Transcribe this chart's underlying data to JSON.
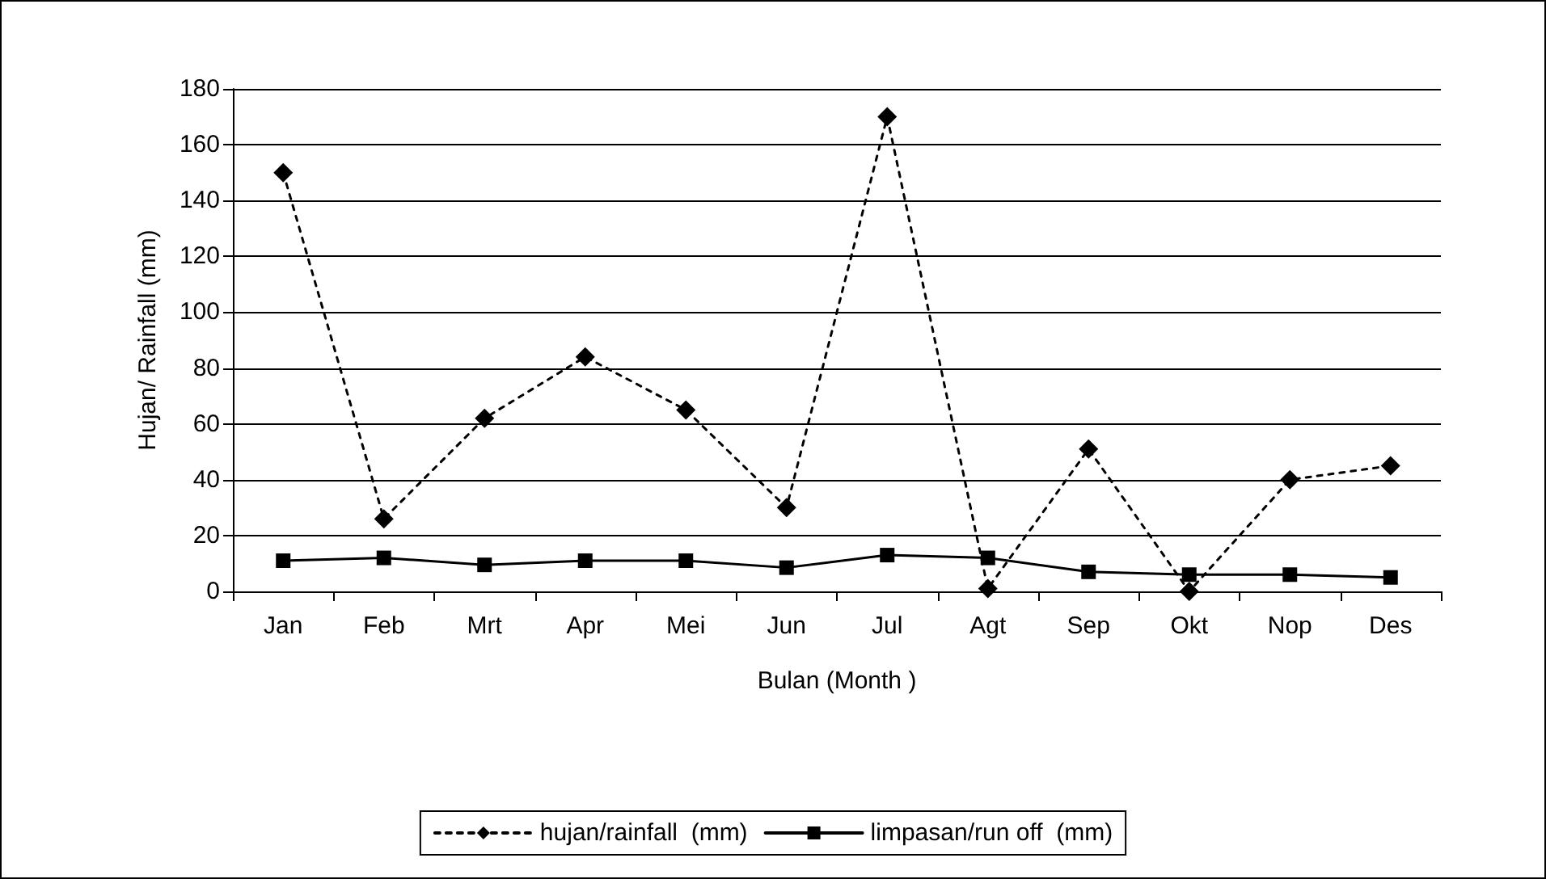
{
  "chart_data": {
    "type": "line",
    "xlabel": "Bulan (Month )",
    "ylabel": "Hujan/ Rainfall (mm)",
    "categories": [
      "Jan",
      "Feb",
      "Mrt",
      "Apr",
      "Mei",
      "Jun",
      "Jul",
      "Agt",
      "Sep",
      "Okt",
      "Nop",
      "Des"
    ],
    "series": [
      {
        "name": "hujan/rainfall  (mm)",
        "color": "#000000",
        "marker": "diamond",
        "line_style": "dotted",
        "values": [
          150,
          26,
          62,
          84,
          65,
          30,
          170,
          1,
          51,
          0,
          40,
          45
        ]
      },
      {
        "name": "limpasan/run off  (mm)",
        "color": "#000000",
        "marker": "square",
        "line_style": "solid",
        "values": [
          11,
          12,
          9.5,
          11,
          11,
          8.5,
          13,
          12,
          7,
          6,
          6,
          5
        ]
      }
    ],
    "ylim": [
      0,
      180
    ],
    "yticks": [
      0,
      20,
      40,
      60,
      80,
      100,
      120,
      140,
      160,
      180
    ],
    "grid": "y",
    "legend": "bottom"
  }
}
